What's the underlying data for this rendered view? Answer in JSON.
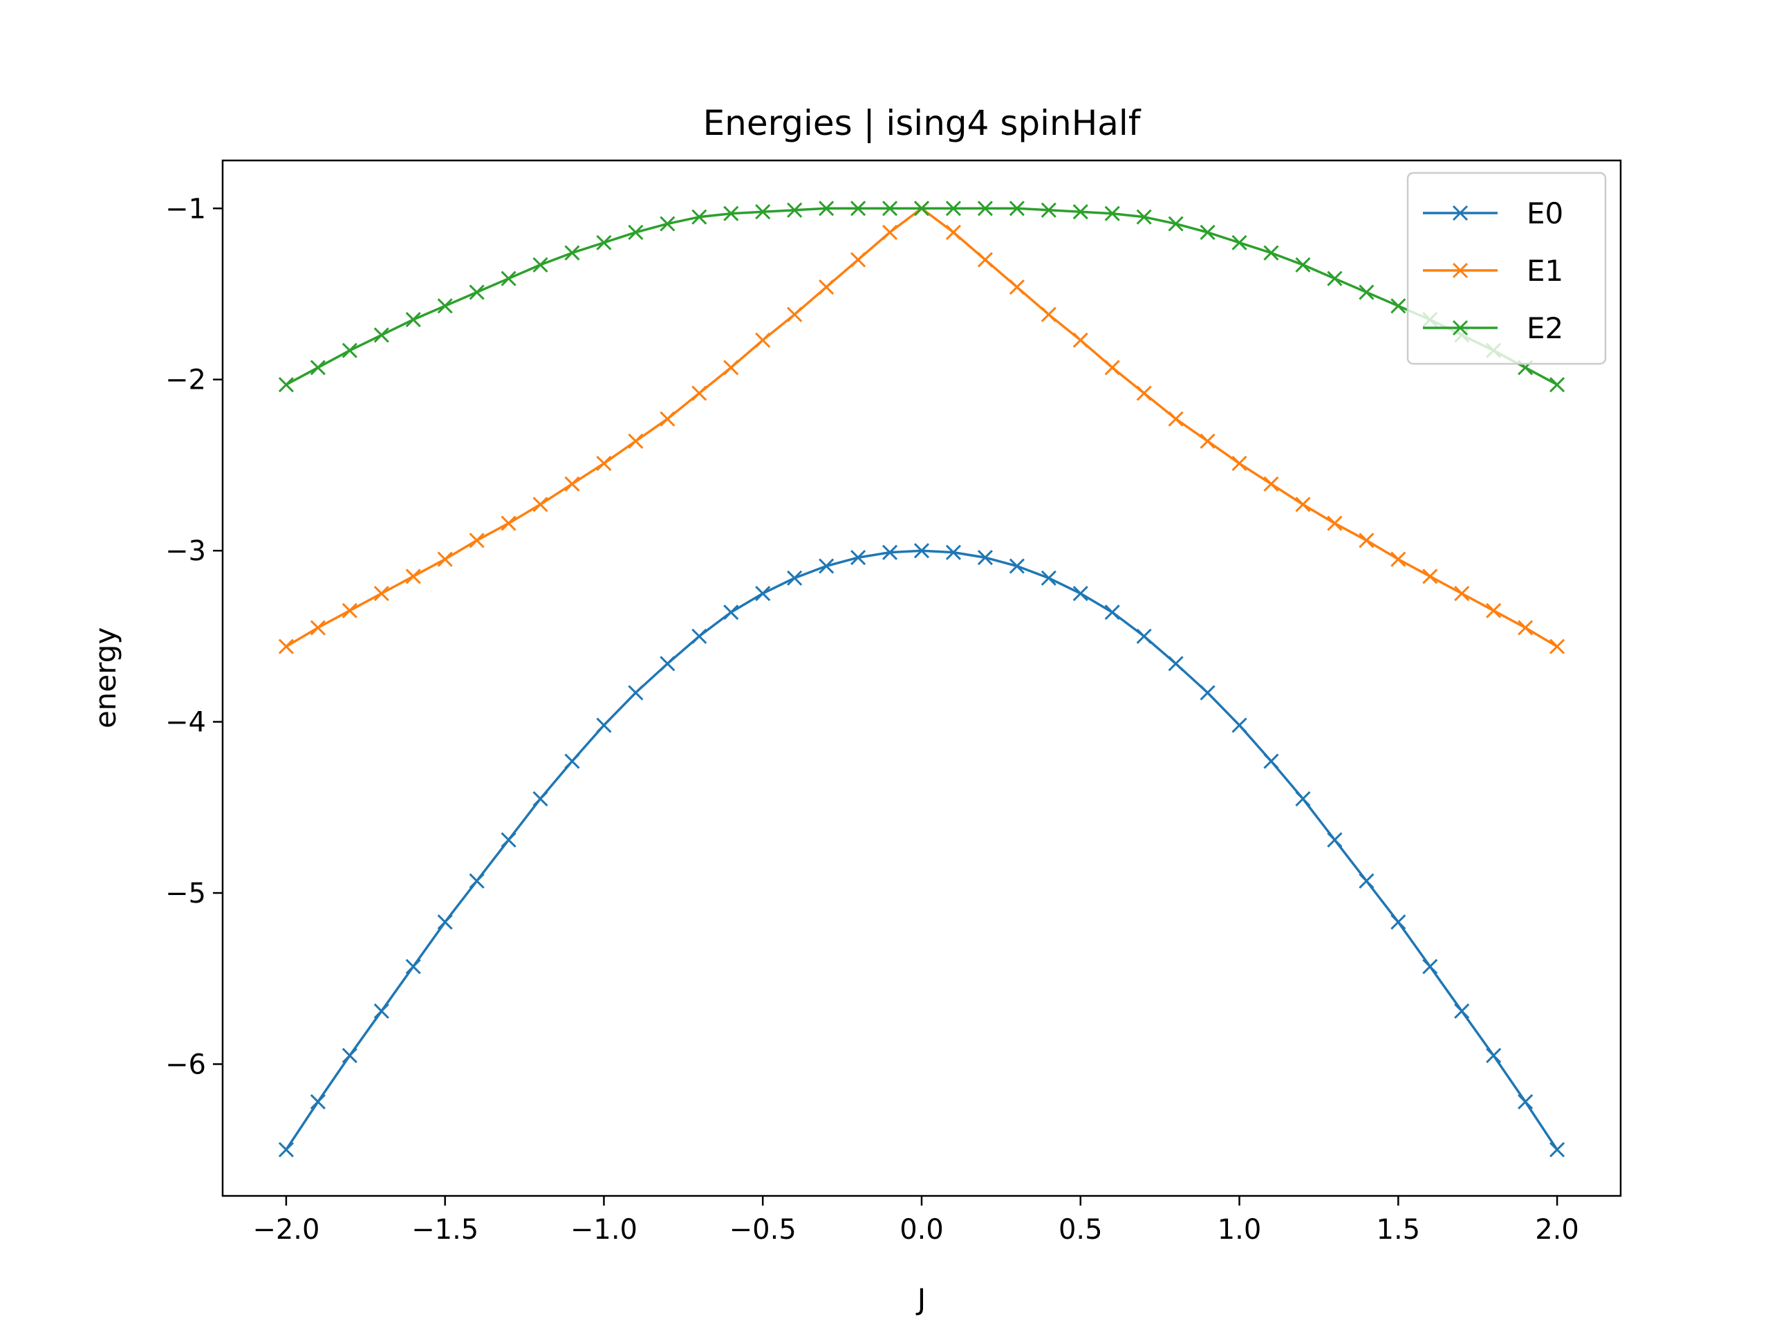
{
  "chart_data": {
    "type": "line",
    "title": "Energies | ising4 spinHalf",
    "xlabel": "J",
    "ylabel": "energy",
    "xlim": [
      -2.2,
      2.2
    ],
    "ylim": [
      -6.77,
      -0.72
    ],
    "xticks": [
      -2.0,
      -1.5,
      -1.0,
      -0.5,
      0.0,
      0.5,
      1.0,
      1.5,
      2.0
    ],
    "xtick_labels": [
      "−2.0",
      "−1.5",
      "−1.0",
      "−0.5",
      "0.0",
      "0.5",
      "1.0",
      "1.5",
      "2.0"
    ],
    "yticks": [
      -6,
      -5,
      -4,
      -3,
      -2,
      -1
    ],
    "ytick_labels": [
      "−6",
      "−5",
      "−4",
      "−3",
      "−2",
      "−1"
    ],
    "grid": false,
    "legend_position": "top-right",
    "marker": "x",
    "x": [
      -2.0,
      -1.9,
      -1.8,
      -1.7,
      -1.6,
      -1.5,
      -1.4,
      -1.3,
      -1.2,
      -1.1,
      -1.0,
      -0.9,
      -0.8,
      -0.7,
      -0.6,
      -0.5,
      -0.4,
      -0.3,
      -0.2,
      -0.1,
      0.0,
      0.1,
      0.2,
      0.3,
      0.4,
      0.5,
      0.6,
      0.7,
      0.8,
      0.9,
      1.0,
      1.1,
      1.2,
      1.3,
      1.4,
      1.5,
      1.6,
      1.7,
      1.8,
      1.9,
      2.0
    ],
    "series": [
      {
        "name": "E0",
        "color": "#1f77b4",
        "values": [
          -6.5,
          -6.22,
          -5.95,
          -5.69,
          -5.43,
          -5.17,
          -4.93,
          -4.69,
          -4.45,
          -4.23,
          -4.02,
          -3.83,
          -3.66,
          -3.5,
          -3.36,
          -3.25,
          -3.16,
          -3.09,
          -3.04,
          -3.01,
          -3.0,
          -3.01,
          -3.04,
          -3.09,
          -3.16,
          -3.25,
          -3.36,
          -3.5,
          -3.66,
          -3.83,
          -4.02,
          -4.23,
          -4.45,
          -4.69,
          -4.93,
          -5.17,
          -5.43,
          -5.69,
          -5.95,
          -6.22,
          -6.5
        ]
      },
      {
        "name": "E1",
        "color": "#ff7f0e",
        "values": [
          -3.56,
          -3.45,
          -3.35,
          -3.25,
          -3.15,
          -3.05,
          -2.94,
          -2.84,
          -2.73,
          -2.61,
          -2.49,
          -2.36,
          -2.23,
          -2.08,
          -1.93,
          -1.77,
          -1.62,
          -1.46,
          -1.3,
          -1.14,
          -1.0,
          -1.14,
          -1.3,
          -1.46,
          -1.62,
          -1.77,
          -1.93,
          -2.08,
          -2.23,
          -2.36,
          -2.49,
          -2.61,
          -2.73,
          -2.84,
          -2.94,
          -3.05,
          -3.15,
          -3.25,
          -3.35,
          -3.45,
          -3.56
        ]
      },
      {
        "name": "E2",
        "color": "#2ca02c",
        "values": [
          -2.03,
          -1.93,
          -1.83,
          -1.74,
          -1.65,
          -1.57,
          -1.49,
          -1.41,
          -1.33,
          -1.26,
          -1.2,
          -1.14,
          -1.09,
          -1.05,
          -1.03,
          -1.02,
          -1.01,
          -1.0,
          -1.0,
          -1.0,
          -1.0,
          -1.0,
          -1.0,
          -1.0,
          -1.01,
          -1.02,
          -1.03,
          -1.05,
          -1.09,
          -1.14,
          -1.2,
          -1.26,
          -1.33,
          -1.41,
          -1.49,
          -1.57,
          -1.65,
          -1.74,
          -1.83,
          -1.93,
          -2.03
        ]
      }
    ]
  }
}
